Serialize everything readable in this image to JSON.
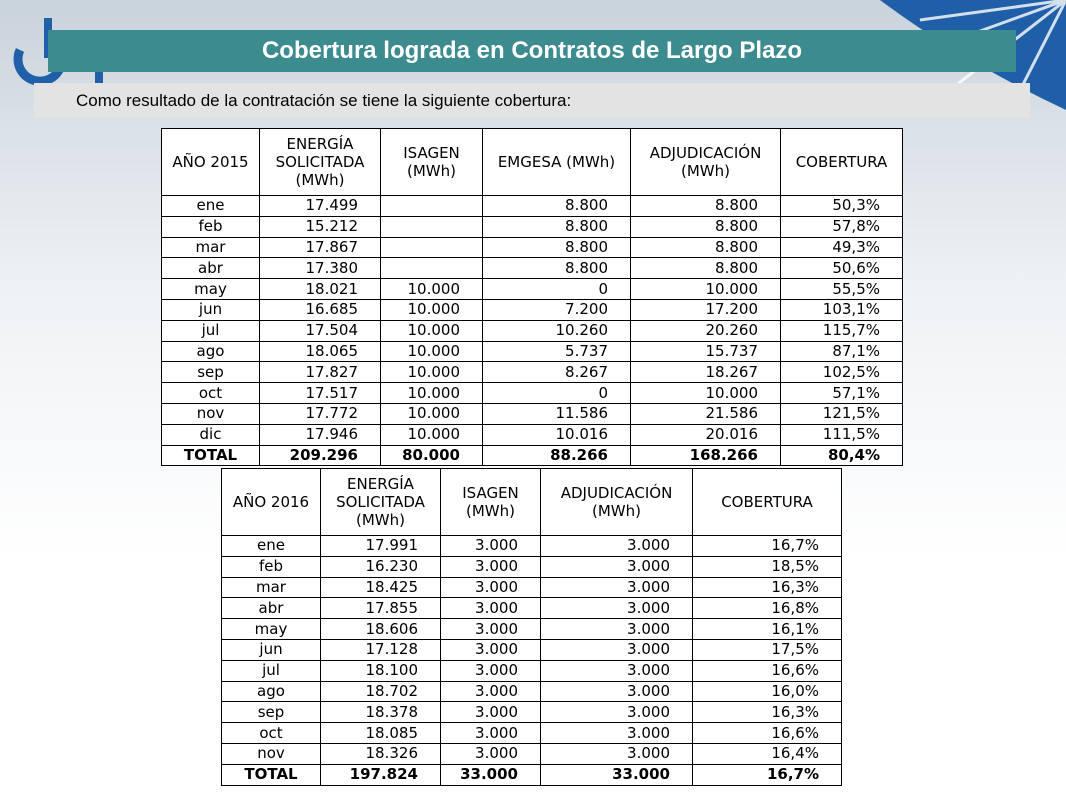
{
  "header": {
    "title": "Cobertura lograda en Contratos de Largo Plazo"
  },
  "subtitle": "Como resultado de la contratación se tiene la siguiente cobertura:",
  "tables": [
    {
      "columns": [
        [
          "AÑO 2015"
        ],
        [
          "ENERGÍA",
          "SOLICITADA",
          "(MWh)"
        ],
        [
          "ISAGEN",
          "(MWh)"
        ],
        [
          "EMGESA (MWh)"
        ],
        [
          "ADJUDICACIÓN",
          "(MWh)"
        ],
        [
          "COBERTURA"
        ]
      ],
      "rows": [
        [
          "ene",
          "17.499",
          null,
          "8.800",
          "8.800",
          "50,3%"
        ],
        [
          "feb",
          "15.212",
          null,
          "8.800",
          "8.800",
          "57,8%"
        ],
        [
          "mar",
          "17.867",
          null,
          "8.800",
          "8.800",
          "49,3%"
        ],
        [
          "abr",
          "17.380",
          null,
          "8.800",
          "8.800",
          "50,6%"
        ],
        [
          "may",
          "18.021",
          "10.000",
          "0",
          "10.000",
          "55,5%"
        ],
        [
          "jun",
          "16.685",
          "10.000",
          "7.200",
          "17.200",
          "103,1%"
        ],
        [
          "jul",
          "17.504",
          "10.000",
          "10.260",
          "20.260",
          "115,7%"
        ],
        [
          "ago",
          "18.065",
          "10.000",
          "5.737",
          "15.737",
          "87,1%"
        ],
        [
          "sep",
          "17.827",
          "10.000",
          "8.267",
          "18.267",
          "102,5%"
        ],
        [
          "oct",
          "17.517",
          "10.000",
          "0",
          "10.000",
          "57,1%"
        ],
        [
          "nov",
          "17.772",
          "10.000",
          "11.586",
          "21.586",
          "121,5%"
        ],
        [
          "dic",
          "17.946",
          "10.000",
          "10.016",
          "20.016",
          "111,5%"
        ]
      ],
      "total": [
        "TOTAL",
        "209.296",
        "80.000",
        "88.266",
        "168.266",
        "80,4%"
      ]
    },
    {
      "columns": [
        [
          "AÑO 2016"
        ],
        [
          "ENERGÍA",
          "SOLICITADA",
          "(MWh)"
        ],
        [
          "ISAGEN",
          "(MWh)"
        ],
        [
          "ADJUDICACIÓN",
          "(MWh)"
        ],
        [
          "COBERTURA"
        ]
      ],
      "rows": [
        [
          "ene",
          "17.991",
          "3.000",
          "3.000",
          "16,7%"
        ],
        [
          "feb",
          "16.230",
          "3.000",
          "3.000",
          "18,5%"
        ],
        [
          "mar",
          "18.425",
          "3.000",
          "3.000",
          "16,3%"
        ],
        [
          "abr",
          "17.855",
          "3.000",
          "3.000",
          "16,8%"
        ],
        [
          "may",
          "18.606",
          "3.000",
          "3.000",
          "16,1%"
        ],
        [
          "jun",
          "17.128",
          "3.000",
          "3.000",
          "17,5%"
        ],
        [
          "jul",
          "18.100",
          "3.000",
          "3.000",
          "16,6%"
        ],
        [
          "ago",
          "18.702",
          "3.000",
          "3.000",
          "16,0%"
        ],
        [
          "sep",
          "18.378",
          "3.000",
          "3.000",
          "16,3%"
        ],
        [
          "oct",
          "18.085",
          "3.000",
          "3.000",
          "16,6%"
        ],
        [
          "nov",
          "18.326",
          "3.000",
          "3.000",
          "16,4%"
        ]
      ],
      "total": [
        "TOTAL",
        "197.824",
        "33.000",
        "33.000",
        "16,7%"
      ]
    }
  ]
}
